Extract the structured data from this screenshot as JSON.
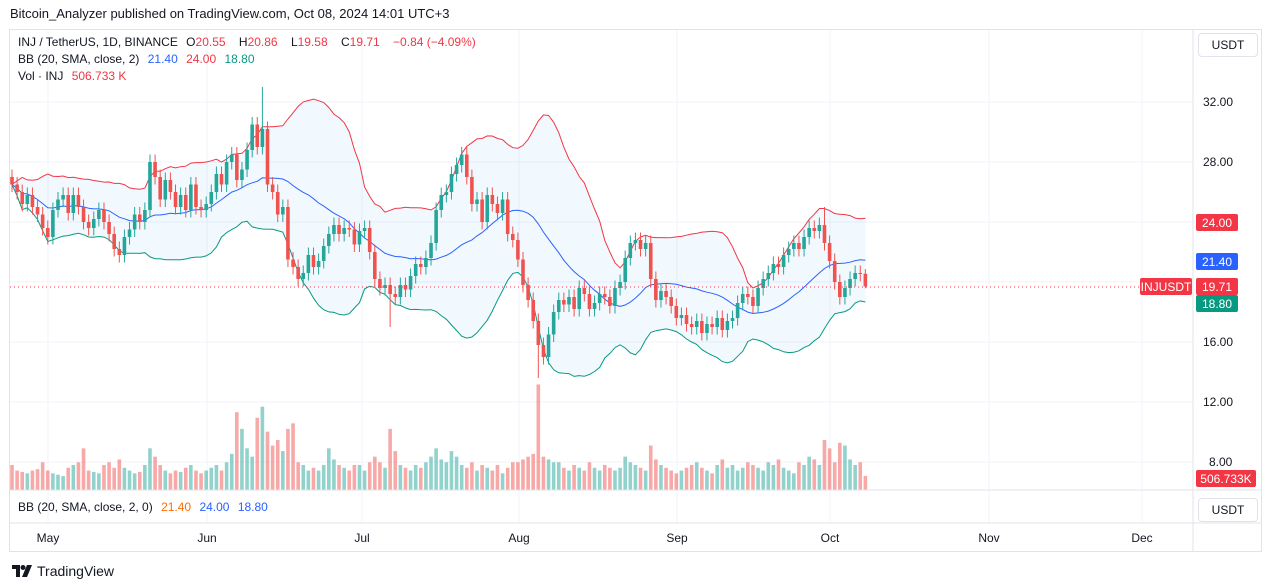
{
  "header": {
    "published": "Bitcoin_Analyzer published on TradingView.com, Oct 08, 2024 14:01 UTC+3"
  },
  "legend": {
    "symbol": "INJ / TetherUS, 1D, BINANCE",
    "o_label": "O",
    "open": "20.55",
    "h_label": "H",
    "high": "20.86",
    "l_label": "L",
    "low": "19.58",
    "c_label": "C",
    "close": "19.71",
    "change": "−0.84 (−4.09%)",
    "bb_label": "BB (20, SMA, close, 2)",
    "bb_mid": "21.40",
    "bb_upper": "24.00",
    "bb_lower": "18.80",
    "vol_label": "Vol · INJ",
    "vol_value": "506.733 K"
  },
  "lower_pane": {
    "label": "BB (20, SMA, close, 2, 0)",
    "v1": "21.40",
    "v2": "24.00",
    "v3": "18.80",
    "unit": "USDT"
  },
  "price_axis": {
    "unit": "USDT",
    "ticks": [
      "32.00",
      "28.00",
      "16.00",
      "12.00",
      "8.00"
    ],
    "labels": {
      "upper": "24.00",
      "mid": "21.40",
      "last": "19.71",
      "symbol_tag": "INJUSDT",
      "lower": "18.80",
      "volume": "506.733K"
    }
  },
  "time_axis": [
    "May",
    "Jun",
    "Jul",
    "Aug",
    "Sep",
    "Oct",
    "Nov",
    "Dec"
  ],
  "footer": {
    "brand": "TradingView"
  },
  "colors": {
    "up": "#26a69a",
    "down": "#ef5350",
    "bb_mid": "#2962ff",
    "bb_upper": "#f23645",
    "bb_lower": "#089981",
    "last_price": "#f23645"
  },
  "chart_data": {
    "type": "candlestick",
    "symbol": "INJUSDT",
    "interval": "1D",
    "first_date": "2024-04-24",
    "y_range": [
      6,
      36
    ],
    "first_open": 27.0,
    "close": [
      26.5,
      26.0,
      25.2,
      25.8,
      25.0,
      24.5,
      23.6,
      23.0,
      24.8,
      25.5,
      25.8,
      24.6,
      25.8,
      25.0,
      24.0,
      23.6,
      24.2,
      24.8,
      24.0,
      23.2,
      22.2,
      21.8,
      23.0,
      23.5,
      24.5,
      24.0,
      24.8,
      28.0,
      27.0,
      25.5,
      26.8,
      26.0,
      25.0,
      25.8,
      24.8,
      26.5,
      25.0,
      24.8,
      25.2,
      26.0,
      27.2,
      26.5,
      28.0,
      28.5,
      26.8,
      27.5,
      28.8,
      30.5,
      29.0,
      30.2,
      26.5,
      26.0,
      24.5,
      25.0,
      21.5,
      21.0,
      20.2,
      20.6,
      21.8,
      21.0,
      21.4,
      22.4,
      23.2,
      23.8,
      23.2,
      23.6,
      23.5,
      22.5,
      23.4,
      23.6,
      22.0,
      20.2,
      19.6,
      19.8,
      19.2,
      19.0,
      19.8,
      19.5,
      20.4,
      21.2,
      21.0,
      21.6,
      22.6,
      24.8,
      25.8,
      26.0,
      27.2,
      27.8,
      28.5,
      27.0,
      25.2,
      25.5,
      24.0,
      25.8,
      25.2,
      24.6,
      25.5,
      23.2,
      22.8,
      21.5,
      19.8,
      18.8,
      17.4,
      15.8,
      15.0,
      16.5,
      18.0,
      18.8,
      18.5,
      19.0,
      18.2,
      19.6,
      19.2,
      18.2,
      18.6,
      19.2,
      19.0,
      18.4,
      19.6,
      20.0,
      21.6,
      22.6,
      22.8,
      22.2,
      22.6,
      20.2,
      18.8,
      19.4,
      19.0,
      18.4,
      17.6,
      17.8,
      17.2,
      17.0,
      17.4,
      16.6,
      17.2,
      17.0,
      17.6,
      16.8,
      17.4,
      17.6,
      18.6,
      19.2,
      19.0,
      18.4,
      19.6,
      20.2,
      20.6,
      21.2,
      21.0,
      21.8,
      22.2,
      22.6,
      22.2,
      23.0,
      23.6,
      23.4,
      23.8,
      22.6,
      21.4,
      20.0,
      19.0,
      19.6,
      20.2,
      20.6,
      20.55,
      19.71
    ],
    "wick_extremes": [
      {
        "date": "2024-06-12",
        "high": 33.0
      },
      {
        "date": "2024-07-07",
        "low": 17.0
      },
      {
        "date": "2024-08-05",
        "low": 13.6
      },
      {
        "date": "2024-09-30",
        "high": 25.0
      },
      {
        "date": "2024-10-08",
        "high": 20.86,
        "low": 19.58
      }
    ],
    "volume_k": [
      900,
      700,
      650,
      600,
      700,
      750,
      1000,
      700,
      600,
      550,
      500,
      800,
      900,
      1000,
      1500,
      700,
      650,
      600,
      900,
      1000,
      800,
      1100,
      800,
      700,
      600,
      650,
      900,
      1500,
      1200,
      900,
      700,
      600,
      700,
      650,
      800,
      900,
      700,
      600,
      700,
      800,
      900,
      700,
      1000,
      1300,
      2800,
      2200,
      1500,
      1200,
      2600,
      3000,
      2100,
      1600,
      1800,
      1400,
      2200,
      2400,
      1000,
      900,
      700,
      800,
      700,
      900,
      1500,
      1100,
      900,
      800,
      700,
      900,
      900,
      700,
      1000,
      1200,
      1000,
      800,
      2200,
      1400,
      900,
      800,
      700,
      900,
      800,
      1000,
      1200,
      1500,
      1100,
      1000,
      1400,
      1200,
      900,
      800,
      1000,
      700,
      900,
      800,
      700,
      900,
      600,
      800,
      1000,
      1000,
      1100,
      1200,
      1300,
      3800,
      1200,
      1100,
      1000,
      1000,
      800,
      700,
      900,
      800,
      700,
      1000,
      800,
      700,
      900,
      800,
      700,
      800,
      1200,
      1000,
      900,
      800,
      700,
      1600,
      1100,
      900,
      800,
      700,
      600,
      700,
      800,
      900,
      1000,
      800,
      700,
      600,
      900,
      1100,
      800,
      900,
      700,
      800,
      1000,
      900,
      800,
      700,
      1000,
      900,
      1100,
      800,
      700,
      600,
      1000,
      900,
      1200,
      1100,
      900,
      1800,
      1500,
      1000,
      1700,
      1600,
      1100,
      900,
      1000,
      506.733
    ],
    "indicator": {
      "name": "BB (20, SMA, close, 2)",
      "last": {
        "basis": 21.4,
        "upper": 24.0,
        "lower": 18.8
      }
    }
  }
}
